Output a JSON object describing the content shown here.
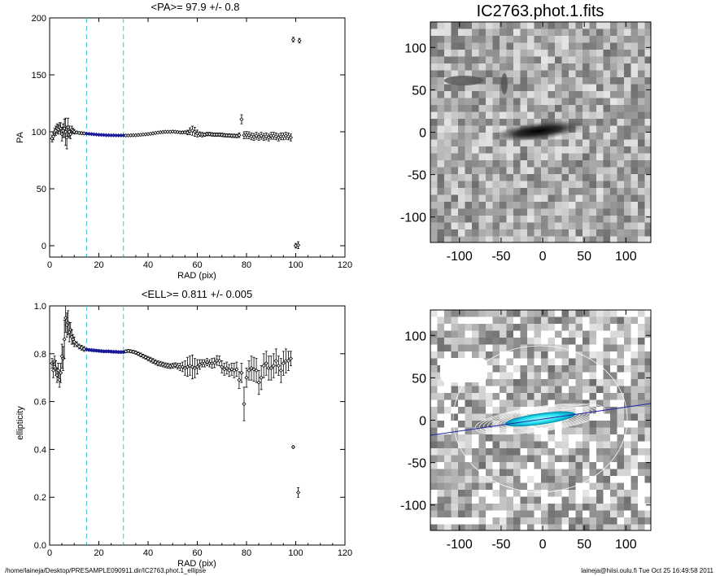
{
  "footer": {
    "left": "/home/laineja/Desktop/PRESAMPLE090911.dir/IC2763.phot.1_ellipse",
    "right": "laineja@hiisi.oulu.fi  Tue Oct 25 16:49:58 2011"
  },
  "colors": {
    "data": "#000000",
    "fit_range": "#1a1a9a",
    "guide": "#33cccc",
    "pa_line": "#2222aa",
    "core": "#22ddee"
  },
  "chart_data": [
    {
      "type": "scatter",
      "title": "<PA>=  97.9 +/-   0.8",
      "xlabel": "RAD (pix)",
      "ylabel": "PA",
      "xlim": [
        0,
        120
      ],
      "ylim": [
        -10,
        200
      ],
      "xticks": [
        "0",
        "20",
        "40",
        "60",
        "80",
        "100",
        "120"
      ],
      "yticks": [
        "0",
        "50",
        "100",
        "150",
        "200"
      ],
      "vlines": [
        15,
        30
      ],
      "fit_range": [
        15,
        30
      ],
      "mean": 97.9,
      "points": [
        [
          1,
          94,
          3
        ],
        [
          1.5,
          96,
          3
        ],
        [
          2,
          100,
          3
        ],
        [
          2.5,
          101,
          4
        ],
        [
          3,
          103,
          4
        ],
        [
          3.5,
          102,
          4
        ],
        [
          4,
          104,
          4
        ],
        [
          4.5,
          103,
          5
        ],
        [
          5,
          98,
          6
        ],
        [
          5.5,
          101,
          6
        ],
        [
          6,
          103,
          8
        ],
        [
          6.5,
          100,
          12
        ],
        [
          7,
          95,
          10
        ],
        [
          7.5,
          104,
          8
        ],
        [
          8,
          100,
          5
        ],
        [
          8.5,
          98,
          4
        ],
        [
          9,
          102,
          3
        ],
        [
          9.5,
          101,
          2
        ],
        [
          10,
          100,
          2
        ],
        [
          11,
          99.5,
          1
        ],
        [
          12,
          99,
          1
        ],
        [
          13,
          98.8,
          1
        ],
        [
          14,
          98.6,
          1
        ],
        [
          15,
          98.4,
          0.5
        ],
        [
          16,
          98.2,
          0.5
        ],
        [
          17,
          98,
          0.5
        ],
        [
          18,
          97.8,
          0.5
        ],
        [
          19,
          97.6,
          0.5
        ],
        [
          20,
          97.4,
          0.5
        ],
        [
          21,
          97.3,
          0.5
        ],
        [
          22,
          97.2,
          0.5
        ],
        [
          23,
          97,
          0.5
        ],
        [
          24,
          97,
          0.5
        ],
        [
          25,
          96.9,
          0.5
        ],
        [
          26,
          96.9,
          0.5
        ],
        [
          27,
          96.8,
          0.5
        ],
        [
          28,
          96.8,
          0.5
        ],
        [
          29,
          96.8,
          0.5
        ],
        [
          30,
          96.8,
          0.5
        ],
        [
          31,
          96.8,
          0.5
        ],
        [
          32,
          96.8,
          0.5
        ],
        [
          33,
          96.9,
          0.5
        ],
        [
          34,
          97,
          0.5
        ],
        [
          35,
          97,
          0.5
        ],
        [
          36,
          97.2,
          0.5
        ],
        [
          37,
          97.4,
          0.5
        ],
        [
          38,
          97.6,
          0.5
        ],
        [
          39,
          97.8,
          0.5
        ],
        [
          40,
          98,
          0.5
        ],
        [
          41,
          98.3,
          0.5
        ],
        [
          42,
          98.6,
          0.5
        ],
        [
          43,
          99,
          0.5
        ],
        [
          44,
          99.3,
          0.5
        ],
        [
          45,
          99.6,
          0.5
        ],
        [
          46,
          99.8,
          0.5
        ],
        [
          47,
          100,
          0.6
        ],
        [
          48,
          100,
          0.6
        ],
        [
          49,
          100,
          0.6
        ],
        [
          50,
          100.2,
          0.7
        ],
        [
          51,
          100,
          0.8
        ],
        [
          52,
          99.8,
          0.8
        ],
        [
          53,
          99.5,
          0.9
        ],
        [
          54,
          99.5,
          1
        ],
        [
          55,
          99.6,
          1
        ],
        [
          56,
          99.4,
          2
        ],
        [
          57,
          100.5,
          3
        ],
        [
          58,
          101,
          4
        ],
        [
          59,
          100,
          4
        ],
        [
          60,
          98.5,
          3
        ],
        [
          61,
          98,
          2
        ],
        [
          62,
          97.5,
          2
        ],
        [
          63,
          97.5,
          1.5
        ],
        [
          64,
          98,
          1.5
        ],
        [
          65,
          98,
          1.5
        ],
        [
          66,
          97.7,
          1.5
        ],
        [
          67,
          97.5,
          1.5
        ],
        [
          68,
          97.5,
          1.5
        ],
        [
          69,
          97.5,
          1.5
        ],
        [
          70,
          97.3,
          1.5
        ],
        [
          71,
          97,
          1.5
        ],
        [
          72,
          96.8,
          1.5
        ],
        [
          73,
          96.8,
          1.5
        ],
        [
          74,
          96.5,
          1.5
        ],
        [
          75,
          96.5,
          1.5
        ],
        [
          76,
          96.3,
          1.5
        ],
        [
          77,
          97,
          2
        ],
        [
          78,
          111,
          4
        ],
        [
          79,
          97,
          3
        ],
        [
          80,
          97.2,
          3
        ],
        [
          81,
          97,
          3
        ],
        [
          82,
          96,
          3
        ],
        [
          83,
          95.5,
          3
        ],
        [
          84,
          96.5,
          3
        ],
        [
          85,
          95.5,
          3
        ],
        [
          86,
          96.5,
          3
        ],
        [
          87,
          95.5,
          3
        ],
        [
          88,
          96,
          3
        ],
        [
          89,
          95,
          3
        ],
        [
          90,
          96.5,
          3
        ],
        [
          91,
          96.5,
          3
        ],
        [
          92,
          96,
          3
        ],
        [
          93,
          95,
          3
        ],
        [
          94,
          96,
          3
        ],
        [
          95,
          96,
          3
        ],
        [
          96,
          96.5,
          3
        ],
        [
          97,
          96,
          3
        ],
        [
          98,
          95,
          3
        ],
        [
          99,
          181,
          2
        ],
        [
          100,
          0,
          2
        ],
        [
          101,
          0.5,
          3
        ],
        [
          101.5,
          180,
          2
        ]
      ]
    },
    {
      "type": "scatter",
      "title": "<ELL>= 0.811 +/-  0.005",
      "xlabel": "RAD (pix)",
      "ylabel": "ellipticity",
      "xlim": [
        0,
        120
      ],
      "ylim": [
        0,
        1
      ],
      "xticks": [
        "0",
        "20",
        "40",
        "60",
        "80",
        "100",
        "120"
      ],
      "yticks": [
        "0.0",
        "0.2",
        "0.4",
        "0.6",
        "0.8",
        "1.0"
      ],
      "vlines": [
        15,
        30
      ],
      "fit_range": [
        15,
        30
      ],
      "mean": 0.811,
      "points": [
        [
          1,
          0.76,
          0.02
        ],
        [
          1.5,
          0.73,
          0.03
        ],
        [
          2,
          0.77,
          0.02
        ],
        [
          2.5,
          0.74,
          0.03
        ],
        [
          3,
          0.71,
          0.03
        ],
        [
          3.5,
          0.73,
          0.03
        ],
        [
          4,
          0.69,
          0.03
        ],
        [
          4.5,
          0.72,
          0.04
        ],
        [
          5,
          0.79,
          0.05
        ],
        [
          5.5,
          0.78,
          0.05
        ],
        [
          6,
          0.86,
          0.08
        ],
        [
          6.5,
          0.95,
          0.06
        ],
        [
          7,
          0.92,
          0.05
        ],
        [
          7.5,
          0.93,
          0.05
        ],
        [
          8,
          0.89,
          0.04
        ],
        [
          8.5,
          0.9,
          0.03
        ],
        [
          9,
          0.87,
          0.03
        ],
        [
          9.5,
          0.86,
          0.02
        ],
        [
          10,
          0.85,
          0.02
        ],
        [
          11,
          0.84,
          0.01
        ],
        [
          12,
          0.83,
          0.01
        ],
        [
          13,
          0.825,
          0.01
        ],
        [
          14,
          0.82,
          0.01
        ],
        [
          15,
          0.818,
          0.005
        ],
        [
          16,
          0.816,
          0.005
        ],
        [
          17,
          0.815,
          0.005
        ],
        [
          18,
          0.814,
          0.005
        ],
        [
          19,
          0.813,
          0.005
        ],
        [
          20,
          0.812,
          0.005
        ],
        [
          21,
          0.811,
          0.005
        ],
        [
          22,
          0.81,
          0.005
        ],
        [
          23,
          0.81,
          0.005
        ],
        [
          24,
          0.81,
          0.005
        ],
        [
          25,
          0.809,
          0.005
        ],
        [
          26,
          0.808,
          0.005
        ],
        [
          27,
          0.808,
          0.005
        ],
        [
          28,
          0.807,
          0.005
        ],
        [
          29,
          0.807,
          0.005
        ],
        [
          30,
          0.807,
          0.005
        ],
        [
          31,
          0.81,
          0.006
        ],
        [
          32,
          0.812,
          0.006
        ],
        [
          33,
          0.81,
          0.006
        ],
        [
          34,
          0.808,
          0.006
        ],
        [
          35,
          0.805,
          0.007
        ],
        [
          36,
          0.8,
          0.007
        ],
        [
          37,
          0.795,
          0.008
        ],
        [
          38,
          0.79,
          0.008
        ],
        [
          39,
          0.785,
          0.008
        ],
        [
          40,
          0.78,
          0.009
        ],
        [
          41,
          0.775,
          0.01
        ],
        [
          42,
          0.77,
          0.01
        ],
        [
          43,
          0.765,
          0.01
        ],
        [
          44,
          0.76,
          0.01
        ],
        [
          45,
          0.758,
          0.01
        ],
        [
          46,
          0.755,
          0.01
        ],
        [
          47,
          0.752,
          0.01
        ],
        [
          48,
          0.75,
          0.01
        ],
        [
          49,
          0.748,
          0.01
        ],
        [
          50,
          0.75,
          0.01
        ],
        [
          51,
          0.752,
          0.01
        ],
        [
          52,
          0.748,
          0.012
        ],
        [
          53,
          0.745,
          0.015
        ],
        [
          54,
          0.745,
          0.02
        ],
        [
          55,
          0.74,
          0.03
        ],
        [
          56,
          0.745,
          0.04
        ],
        [
          57,
          0.75,
          0.04
        ],
        [
          58,
          0.745,
          0.05
        ],
        [
          59,
          0.74,
          0.04
        ],
        [
          60,
          0.745,
          0.03
        ],
        [
          61,
          0.755,
          0.02
        ],
        [
          62,
          0.76,
          0.015
        ],
        [
          63,
          0.76,
          0.015
        ],
        [
          64,
          0.765,
          0.015
        ],
        [
          65,
          0.76,
          0.015
        ],
        [
          66,
          0.76,
          0.02
        ],
        [
          67,
          0.762,
          0.02
        ],
        [
          68,
          0.772,
          0.02
        ],
        [
          69,
          0.77,
          0.02
        ],
        [
          70,
          0.745,
          0.025
        ],
        [
          71,
          0.735,
          0.025
        ],
        [
          72,
          0.74,
          0.025
        ],
        [
          73,
          0.73,
          0.025
        ],
        [
          74,
          0.735,
          0.025
        ],
        [
          75,
          0.73,
          0.03
        ],
        [
          76,
          0.735,
          0.03
        ],
        [
          77,
          0.69,
          0.035
        ],
        [
          78,
          0.72,
          0.04
        ],
        [
          79,
          0.59,
          0.07
        ],
        [
          80,
          0.7,
          0.04
        ],
        [
          81,
          0.73,
          0.04
        ],
        [
          82,
          0.74,
          0.05
        ],
        [
          83,
          0.735,
          0.05
        ],
        [
          84,
          0.73,
          0.05
        ],
        [
          85,
          0.68,
          0.05
        ],
        [
          86,
          0.7,
          0.05
        ],
        [
          87,
          0.75,
          0.05
        ],
        [
          88,
          0.76,
          0.05
        ],
        [
          89,
          0.74,
          0.05
        ],
        [
          90,
          0.74,
          0.05
        ],
        [
          91,
          0.75,
          0.05
        ],
        [
          92,
          0.77,
          0.05
        ],
        [
          93,
          0.75,
          0.04
        ],
        [
          94,
          0.73,
          0.05
        ],
        [
          95,
          0.76,
          0.05
        ],
        [
          96,
          0.77,
          0.05
        ],
        [
          97,
          0.77,
          0.04
        ],
        [
          98,
          0.78,
          0.03
        ],
        [
          99,
          0.41,
          0.005
        ],
        [
          101,
          0.22,
          0.02
        ]
      ]
    },
    {
      "type": "heatmap",
      "title": "IC2763.phot.1.fits",
      "xlabel": "",
      "ylabel": "",
      "xlim": [
        -135,
        130
      ],
      "ylim": [
        -130,
        130
      ],
      "xticks": [
        "-100",
        "-50",
        "0",
        "50",
        "100"
      ],
      "yticks": [
        "100",
        "50",
        "0",
        "-50",
        "-100"
      ]
    },
    {
      "type": "heatmap",
      "title": "",
      "xlabel": "",
      "ylabel": "",
      "xlim": [
        -135,
        130
      ],
      "ylim": [
        -130,
        130
      ],
      "xticks": [
        "-100",
        "-50",
        "0",
        "50",
        "100"
      ],
      "yticks": [
        "100",
        "50",
        "0",
        "-50",
        "-100"
      ],
      "pa_line_deg": 97.9
    }
  ]
}
